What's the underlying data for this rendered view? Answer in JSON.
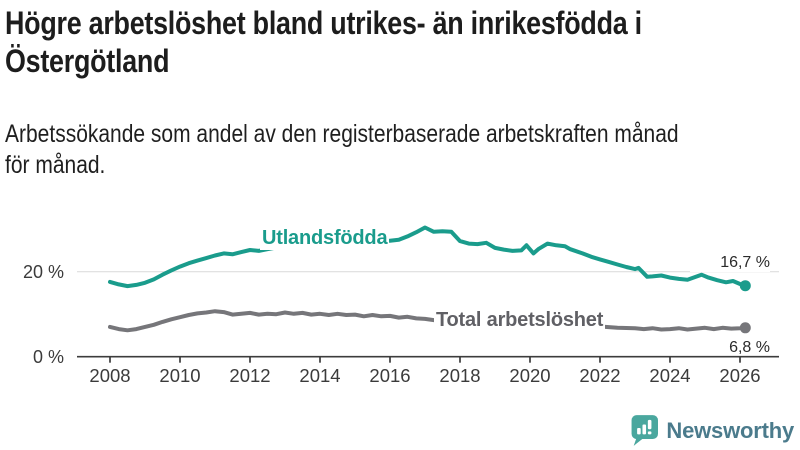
{
  "title": {
    "line1": "Högre arbetslöshet bland utrikes- än inrikesfödda i",
    "line2": "Östergötland"
  },
  "subtitle": {
    "line1": "Arbetssökande som andel av den registerbaserade arbetskraften månad",
    "line2": "för månad."
  },
  "chart_data": {
    "type": "line",
    "title": "Högre arbetslöshet bland utrikes- än inrikesfödda i Östergötland",
    "subtitle": "Arbetssökande som andel av den registerbaserade arbetskraften månad för månad.",
    "x_axis": {
      "unit": "year",
      "ticks": [
        2008,
        2010,
        2012,
        2014,
        2016,
        2018,
        2020,
        2022,
        2024,
        2026
      ],
      "range": [
        2007.8,
        2026.4
      ]
    },
    "y_axis": {
      "unit": "%",
      "ylim": [
        0,
        32
      ],
      "gridlines": [
        {
          "value": 20,
          "label": "20 %"
        },
        {
          "value": 0,
          "label": "0 %"
        }
      ]
    },
    "grid": "horizontal-only",
    "legend_position": "inline-labels",
    "series": [
      {
        "name": "Utlandsfödda",
        "color": "#1a9c8c",
        "end_value": 16.7,
        "end_label": "16,7 %",
        "points": [
          [
            2008.0,
            17.6
          ],
          [
            2008.25,
            17.0
          ],
          [
            2008.5,
            16.6
          ],
          [
            2008.75,
            16.9
          ],
          [
            2009.0,
            17.4
          ],
          [
            2009.25,
            18.2
          ],
          [
            2009.5,
            19.3
          ],
          [
            2009.75,
            20.3
          ],
          [
            2010.0,
            21.2
          ],
          [
            2010.25,
            22.0
          ],
          [
            2010.5,
            22.6
          ],
          [
            2010.75,
            23.2
          ],
          [
            2011.0,
            23.8
          ],
          [
            2011.25,
            24.3
          ],
          [
            2011.5,
            24.1
          ],
          [
            2011.75,
            24.6
          ],
          [
            2012.0,
            25.1
          ],
          [
            2012.25,
            24.9
          ],
          [
            2012.5,
            25.3
          ],
          [
            2012.75,
            25.7
          ],
          [
            2013.0,
            26.0
          ],
          [
            2013.25,
            25.7
          ],
          [
            2013.5,
            26.1
          ],
          [
            2013.75,
            25.9
          ],
          [
            2014.0,
            26.2
          ],
          [
            2014.25,
            26.0
          ],
          [
            2014.5,
            26.4
          ],
          [
            2014.75,
            26.1
          ],
          [
            2015.0,
            26.5
          ],
          [
            2015.25,
            26.3
          ],
          [
            2015.5,
            26.7
          ],
          [
            2015.75,
            27.0
          ],
          [
            2016.0,
            27.3
          ],
          [
            2016.25,
            27.5
          ],
          [
            2016.5,
            28.3
          ],
          [
            2016.75,
            29.3
          ],
          [
            2017.0,
            30.4
          ],
          [
            2017.25,
            29.4
          ],
          [
            2017.5,
            29.5
          ],
          [
            2017.75,
            29.4
          ],
          [
            2018.0,
            27.2
          ],
          [
            2018.25,
            26.6
          ],
          [
            2018.5,
            26.5
          ],
          [
            2018.75,
            26.8
          ],
          [
            2019.0,
            25.6
          ],
          [
            2019.25,
            25.2
          ],
          [
            2019.5,
            24.9
          ],
          [
            2019.75,
            25.0
          ],
          [
            2019.9,
            26.2
          ],
          [
            2020.1,
            24.3
          ],
          [
            2020.25,
            25.4
          ],
          [
            2020.5,
            26.6
          ],
          [
            2020.75,
            26.2
          ],
          [
            2021.0,
            26.0
          ],
          [
            2021.15,
            25.3
          ],
          [
            2021.5,
            24.3
          ],
          [
            2021.75,
            23.5
          ],
          [
            2022.0,
            22.9
          ],
          [
            2022.25,
            22.3
          ],
          [
            2022.5,
            21.7
          ],
          [
            2022.75,
            21.1
          ],
          [
            2023.0,
            20.6
          ],
          [
            2023.1,
            20.9
          ],
          [
            2023.35,
            18.8
          ],
          [
            2023.5,
            18.9
          ],
          [
            2023.75,
            19.1
          ],
          [
            2024.0,
            18.6
          ],
          [
            2024.25,
            18.3
          ],
          [
            2024.5,
            18.1
          ],
          [
            2024.9,
            19.3
          ],
          [
            2025.1,
            18.6
          ],
          [
            2025.35,
            18.0
          ],
          [
            2025.6,
            17.5
          ],
          [
            2025.8,
            17.8
          ],
          [
            2026.0,
            17.1
          ],
          [
            2026.15,
            16.7
          ]
        ]
      },
      {
        "name": "Total arbetslöshet",
        "color": "#76767a",
        "end_value": 6.8,
        "end_label": "6,8 %",
        "points": [
          [
            2008.0,
            7.0
          ],
          [
            2008.25,
            6.5
          ],
          [
            2008.5,
            6.2
          ],
          [
            2008.75,
            6.5
          ],
          [
            2009.0,
            7.0
          ],
          [
            2009.25,
            7.5
          ],
          [
            2009.5,
            8.2
          ],
          [
            2009.75,
            8.8
          ],
          [
            2010.0,
            9.3
          ],
          [
            2010.25,
            9.8
          ],
          [
            2010.5,
            10.2
          ],
          [
            2010.75,
            10.4
          ],
          [
            2011.0,
            10.7
          ],
          [
            2011.25,
            10.5
          ],
          [
            2011.5,
            9.9
          ],
          [
            2011.75,
            10.1
          ],
          [
            2012.0,
            10.3
          ],
          [
            2012.25,
            9.9
          ],
          [
            2012.5,
            10.1
          ],
          [
            2012.75,
            10.0
          ],
          [
            2013.0,
            10.4
          ],
          [
            2013.25,
            10.1
          ],
          [
            2013.5,
            10.3
          ],
          [
            2013.75,
            9.9
          ],
          [
            2014.0,
            10.1
          ],
          [
            2014.25,
            9.8
          ],
          [
            2014.5,
            10.1
          ],
          [
            2014.75,
            9.8
          ],
          [
            2015.0,
            9.9
          ],
          [
            2015.25,
            9.5
          ],
          [
            2015.5,
            9.8
          ],
          [
            2015.75,
            9.5
          ],
          [
            2016.0,
            9.6
          ],
          [
            2016.25,
            9.2
          ],
          [
            2016.5,
            9.4
          ],
          [
            2016.75,
            9.0
          ],
          [
            2017.0,
            8.9
          ],
          [
            2017.25,
            8.6
          ],
          [
            2017.5,
            8.4
          ],
          [
            2017.75,
            8.2
          ],
          [
            2018.0,
            8.0
          ],
          [
            2018.5,
            7.7
          ],
          [
            2019.0,
            7.4
          ],
          [
            2019.5,
            7.3
          ],
          [
            2020.0,
            7.6
          ],
          [
            2020.25,
            8.4
          ],
          [
            2020.5,
            8.8
          ],
          [
            2021.0,
            8.4
          ],
          [
            2021.5,
            7.6
          ],
          [
            2022.0,
            7.1
          ],
          [
            2022.5,
            6.8
          ],
          [
            2023.0,
            6.7
          ],
          [
            2023.25,
            6.5
          ],
          [
            2023.5,
            6.7
          ],
          [
            2023.75,
            6.4
          ],
          [
            2024.0,
            6.5
          ],
          [
            2024.25,
            6.7
          ],
          [
            2024.5,
            6.4
          ],
          [
            2024.75,
            6.6
          ],
          [
            2025.0,
            6.8
          ],
          [
            2025.25,
            6.5
          ],
          [
            2025.5,
            6.8
          ],
          [
            2025.75,
            6.6
          ],
          [
            2026.0,
            6.7
          ],
          [
            2026.15,
            6.8
          ]
        ]
      }
    ]
  },
  "style": {
    "gridline_color": "#d9d9d9",
    "axis_color": "#3c3c3c",
    "axis_label_color": "#3b3b3b",
    "value_label_color": "#2b2b2b"
  },
  "branding": {
    "logo_text": "Newsworthy",
    "logo_icon": "newsworthy-chart-bubble-icon",
    "logo_icon_color": "#4AA79E",
    "logo_text_color": "#4b7b8c"
  }
}
